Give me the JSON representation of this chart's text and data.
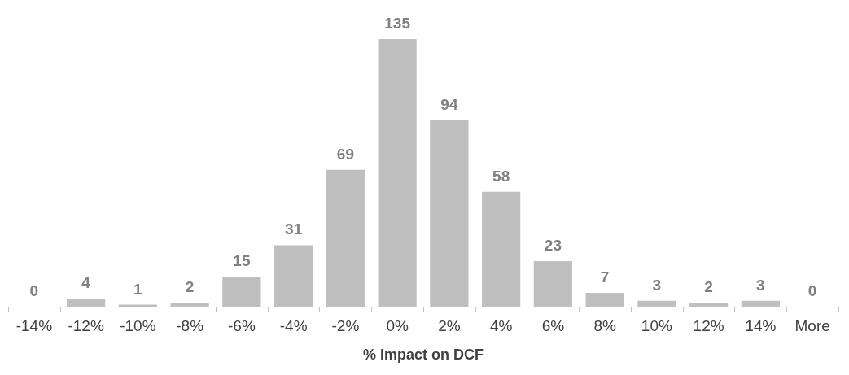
{
  "chart_data": {
    "type": "bar",
    "xlabel": "% Impact on DCF",
    "categories": [
      "-14%",
      "-12%",
      "-10%",
      "-8%",
      "-6%",
      "-4%",
      "-2%",
      "0%",
      "2%",
      "4%",
      "6%",
      "8%",
      "10%",
      "12%",
      "14%",
      "More"
    ],
    "values": [
      0,
      4,
      1,
      2,
      15,
      31,
      69,
      135,
      94,
      58,
      23,
      7,
      3,
      2,
      3,
      0
    ],
    "color": "#bfbfbf",
    "data_labels": true
  }
}
